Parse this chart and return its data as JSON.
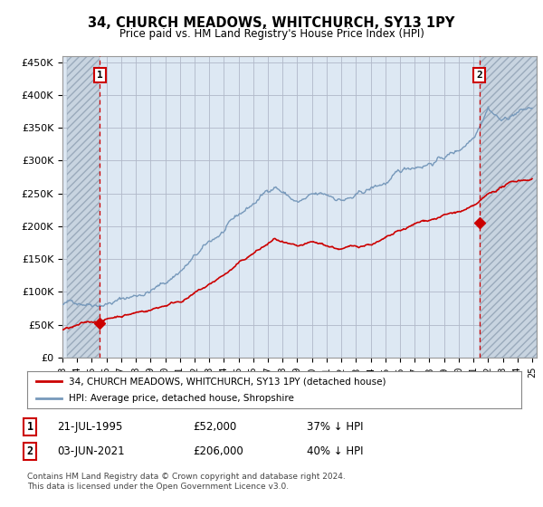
{
  "title": "34, CHURCH MEADOWS, WHITCHURCH, SY13 1PY",
  "subtitle": "Price paid vs. HM Land Registry's House Price Index (HPI)",
  "ylim": [
    0,
    460000
  ],
  "yticks": [
    0,
    50000,
    100000,
    150000,
    200000,
    250000,
    300000,
    350000,
    400000,
    450000
  ],
  "ytick_labels": [
    "£0",
    "£50K",
    "£100K",
    "£150K",
    "£200K",
    "£250K",
    "£300K",
    "£350K",
    "£400K",
    "£450K"
  ],
  "xlim_start": 1993.3,
  "xlim_end": 2025.3,
  "marker1_x": 1995.55,
  "marker1_y": 52000,
  "marker2_x": 2021.42,
  "marker2_y": 206000,
  "legend_line1": "34, CHURCH MEADOWS, WHITCHURCH, SY13 1PY (detached house)",
  "legend_line2": "HPI: Average price, detached house, Shropshire",
  "footnote": "Contains HM Land Registry data © Crown copyright and database right 2024.\nThis data is licensed under the Open Government Licence v3.0.",
  "line_color_red": "#cc0000",
  "line_color_blue": "#7799bb",
  "plot_bg": "#dde8f3",
  "grid_color": "#b0b8c8",
  "hatch_left_end": 1995.55,
  "hatch_right_start": 2021.42,
  "xtick_years": [
    1993,
    1994,
    1995,
    1996,
    1997,
    1998,
    1999,
    2000,
    2001,
    2002,
    2003,
    2004,
    2005,
    2006,
    2007,
    2008,
    2009,
    2010,
    2011,
    2012,
    2013,
    2014,
    2015,
    2016,
    2017,
    2018,
    2019,
    2020,
    2021,
    2022,
    2023,
    2024,
    2025
  ]
}
